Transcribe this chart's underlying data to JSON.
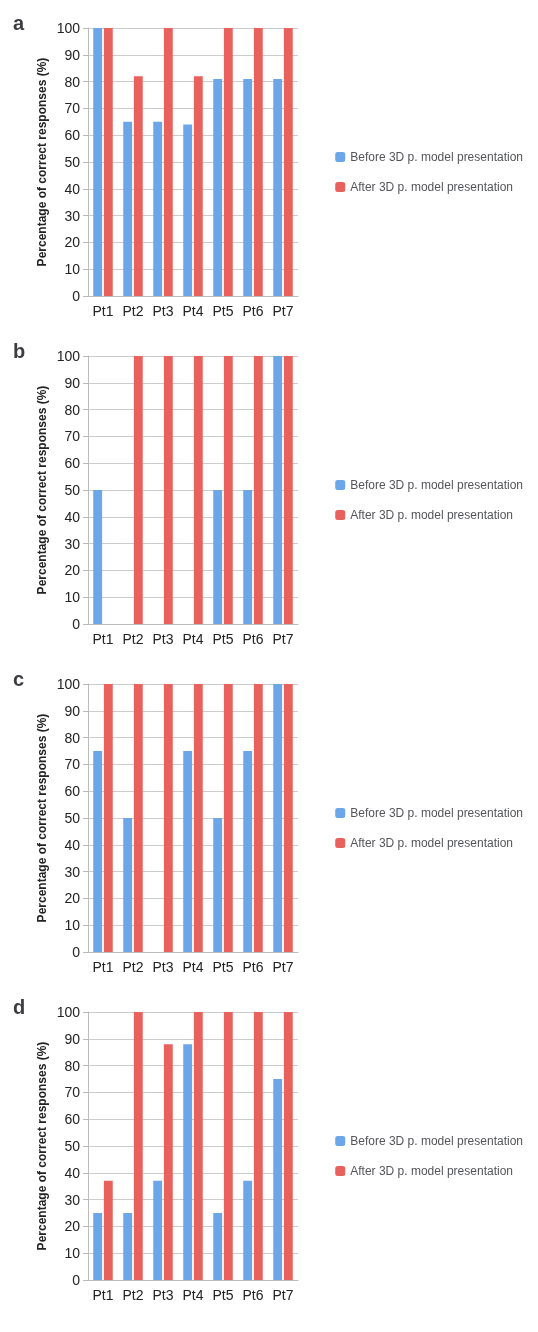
{
  "chart_data": [
    {
      "type": "bar",
      "title": "a",
      "ylabel": "Percentage of correct responses (%)",
      "categories": [
        "Pt1",
        "Pt2",
        "Pt3",
        "Pt4",
        "Pt5",
        "Pt6",
        "Pt7"
      ],
      "series": [
        {
          "name": "Before 3D p. model presentation",
          "color": "#6aa6e8",
          "values": [
            100,
            65,
            65,
            64,
            81,
            81,
            81
          ]
        },
        {
          "name": "After 3D p. model presentation",
          "color": "#e8615c",
          "values": [
            100,
            82,
            100,
            82,
            100,
            100,
            100
          ]
        }
      ],
      "ylim": [
        0,
        100
      ],
      "yticks": [
        0,
        10,
        20,
        30,
        40,
        50,
        60,
        70,
        80,
        90,
        100
      ],
      "grid": "y",
      "legend": "right"
    },
    {
      "type": "bar",
      "title": "b",
      "ylabel": "Percentage of correct responses (%)",
      "categories": [
        "Pt1",
        "Pt2",
        "Pt3",
        "Pt4",
        "Pt5",
        "Pt6",
        "Pt7"
      ],
      "series": [
        {
          "name": "Before 3D p. model presentation",
          "color": "#6aa6e8",
          "values": [
            50,
            0,
            0,
            0,
            50,
            50,
            100
          ]
        },
        {
          "name": "After 3D p. model presentation",
          "color": "#e8615c",
          "values": [
            0,
            100,
            100,
            100,
            100,
            100,
            100
          ]
        }
      ],
      "ylim": [
        0,
        100
      ],
      "yticks": [
        0,
        10,
        20,
        30,
        40,
        50,
        60,
        70,
        80,
        90,
        100
      ],
      "grid": "y",
      "legend": "right"
    },
    {
      "type": "bar",
      "title": "c",
      "ylabel": "Percentage of correct responses (%)",
      "categories": [
        "Pt1",
        "Pt2",
        "Pt3",
        "Pt4",
        "Pt5",
        "Pt6",
        "Pt7"
      ],
      "series": [
        {
          "name": "Before 3D p. model presentation",
          "color": "#6aa6e8",
          "values": [
            75,
            50,
            0,
            75,
            50,
            75,
            100
          ]
        },
        {
          "name": "After 3D p. model presentation",
          "color": "#e8615c",
          "values": [
            100,
            100,
            100,
            100,
            100,
            100,
            100
          ]
        }
      ],
      "ylim": [
        0,
        100
      ],
      "yticks": [
        0,
        10,
        20,
        30,
        40,
        50,
        60,
        70,
        80,
        90,
        100
      ],
      "grid": "y",
      "legend": "right"
    },
    {
      "type": "bar",
      "title": "d",
      "ylabel": "Percentage of correct responses (%)",
      "categories": [
        "Pt1",
        "Pt2",
        "Pt3",
        "Pt4",
        "Pt5",
        "Pt6",
        "Pt7"
      ],
      "series": [
        {
          "name": "Before 3D p. model presentation",
          "color": "#6aa6e8",
          "values": [
            25,
            25,
            37,
            88,
            25,
            37,
            75
          ]
        },
        {
          "name": "After 3D p. model presentation",
          "color": "#e8615c",
          "values": [
            37,
            100,
            88,
            100,
            100,
            100,
            100
          ]
        }
      ],
      "ylim": [
        0,
        100
      ],
      "yticks": [
        0,
        10,
        20,
        30,
        40,
        50,
        60,
        70,
        80,
        90,
        100
      ],
      "grid": "y",
      "legend": "right"
    }
  ]
}
